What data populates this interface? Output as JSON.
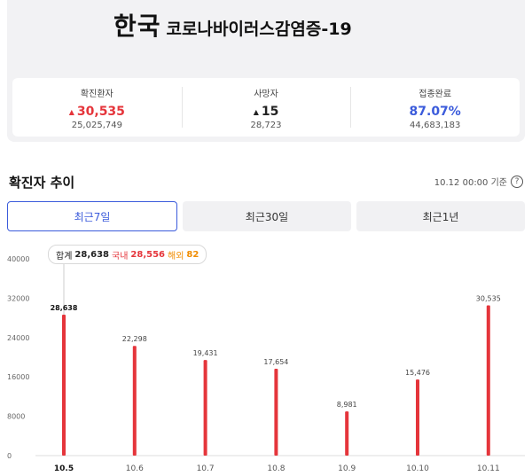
{
  "header": {
    "country": "한국",
    "disease": "코로나바이러스감염증-19"
  },
  "stats": [
    {
      "label": "확진환자",
      "value": "30,535",
      "arrow": "▲",
      "sub": "25,025,749",
      "color": "#e5353b"
    },
    {
      "label": "사망자",
      "value": "15",
      "arrow": "▲",
      "sub": "28,723",
      "color": "#222222"
    },
    {
      "label": "접종완료",
      "value": "87.07%",
      "arrow": "",
      "sub": "44,683,183",
      "color": "#3b5bdb"
    }
  ],
  "trend": {
    "title": "확진자 추이",
    "updated": "10.12 00:00 기준",
    "help_icon": "question-circle-icon"
  },
  "tabs": [
    {
      "label": "최근7일",
      "active": true
    },
    {
      "label": "최근30일",
      "active": false
    },
    {
      "label": "최근1년",
      "active": false
    }
  ],
  "tooltip": {
    "total_label": "합계",
    "total_value": "28,638",
    "domestic_label": "국내",
    "domestic_value": "28,556",
    "overseas_label": "해외",
    "overseas_value": "82"
  },
  "chart_data": {
    "type": "bar",
    "categories": [
      "10.5",
      "10.6",
      "10.7",
      "10.8",
      "10.9",
      "10.10",
      "10.11"
    ],
    "values": [
      28638,
      22298,
      19431,
      17654,
      8981,
      15476,
      30535
    ],
    "value_labels": [
      "28,638",
      "22,298",
      "19,431",
      "17,654",
      "8,981",
      "15,476",
      "30,535"
    ],
    "y_ticks": [
      "0",
      "8000",
      "16000",
      "24000",
      "32000",
      "40000"
    ],
    "ylim": [
      0,
      40000
    ],
    "selected_index": 0,
    "bar_color": "#e5353b",
    "grid": false
  }
}
